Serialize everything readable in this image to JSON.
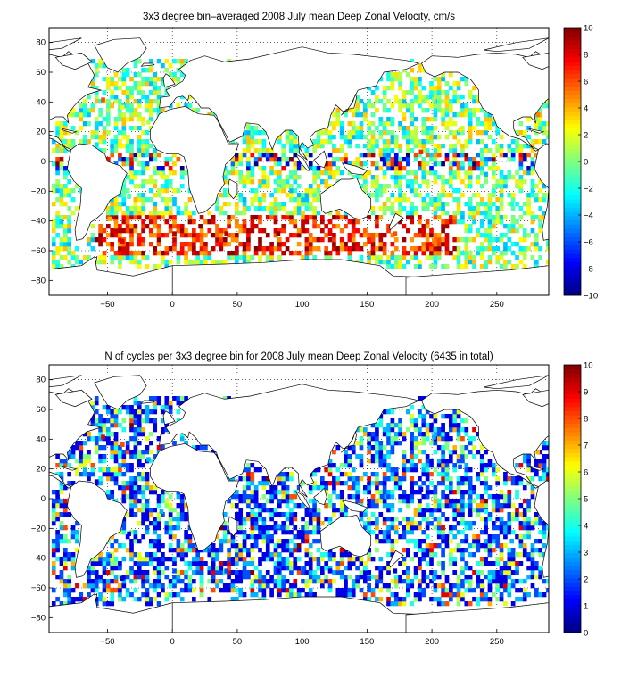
{
  "chart_data": [
    {
      "type": "heatmap",
      "title": "3x3 degree bin–averaged 2008 July mean Deep Zonal Velocity, cm/s",
      "xlabel": "",
      "ylabel": "",
      "xlim": [
        -95,
        290
      ],
      "ylim": [
        -90,
        90
      ],
      "x_ticks": [
        -50,
        0,
        50,
        100,
        150,
        200,
        250
      ],
      "x_tick_labels": [
        "−50",
        "0",
        "50",
        "100",
        "150",
        "200",
        "250"
      ],
      "y_ticks": [
        -80,
        -60,
        -40,
        -20,
        0,
        20,
        40,
        60,
        80
      ],
      "y_tick_labels": [
        "−80",
        "−60",
        "−40",
        "−20",
        "0",
        "20",
        "40",
        "60",
        "80"
      ],
      "grid": "dotted",
      "bin_size_deg": 3,
      "colormap": "jet",
      "color_range": [
        -10,
        10
      ],
      "colorbar_ticks": [
        -10,
        -8,
        -6,
        -4,
        -2,
        0,
        2,
        4,
        6,
        8,
        10
      ],
      "colorbar_tick_labels": [
        "−10",
        "−8",
        "−6",
        "−4",
        "−2",
        "0",
        "2",
        "4",
        "6",
        "8",
        "10"
      ],
      "value_field": "zonal_velocity_cm_s",
      "bins": [
        {
          "lon": -55,
          "lat": 40,
          "value": 6
        },
        {
          "lon": -40,
          "lat": 35,
          "value": 2
        },
        {
          "lon": -30,
          "lat": 50,
          "value": -2
        },
        {
          "lon": -20,
          "lat": 25,
          "value": 1
        },
        {
          "lon": -60,
          "lat": 10,
          "value": -3
        },
        {
          "lon": -30,
          "lat": 0,
          "value": -1
        },
        {
          "lon": -10,
          "lat": -10,
          "value": 2
        },
        {
          "lon": -35,
          "lat": -25,
          "value": -1
        },
        {
          "lon": -50,
          "lat": -40,
          "value": 4
        },
        {
          "lon": -40,
          "lat": -55,
          "value": 8
        },
        {
          "lon": 0,
          "lat": -50,
          "value": 9
        },
        {
          "lon": 20,
          "lat": -45,
          "value": 10
        },
        {
          "lon": 40,
          "lat": -50,
          "value": 9
        },
        {
          "lon": 60,
          "lat": -45,
          "value": 8
        },
        {
          "lon": 80,
          "lat": -50,
          "value": 10
        },
        {
          "lon": 100,
          "lat": -48,
          "value": 9
        },
        {
          "lon": 120,
          "lat": -50,
          "value": 8
        },
        {
          "lon": 150,
          "lat": -55,
          "value": 7
        },
        {
          "lon": 170,
          "lat": -50,
          "value": 6
        },
        {
          "lon": 200,
          "lat": -55,
          "value": 5
        },
        {
          "lon": 60,
          "lat": -10,
          "value": -2
        },
        {
          "lon": 80,
          "lat": -20,
          "value": 1
        },
        {
          "lon": 90,
          "lat": 0,
          "value": 10
        },
        {
          "lon": 160,
          "lat": 0,
          "value": -9
        },
        {
          "lon": 190,
          "lat": 5,
          "value": 7
        },
        {
          "lon": 200,
          "lat": 40,
          "value": 0
        },
        {
          "lon": 220,
          "lat": 20,
          "value": 3
        },
        {
          "lon": 240,
          "lat": -10,
          "value": -4
        },
        {
          "lon": 260,
          "lat": -30,
          "value": -2
        },
        {
          "lon": 280,
          "lat": 30,
          "value": 5
        }
      ],
      "land_mask": "world coastlines; land and unsampled bins white"
    },
    {
      "type": "heatmap",
      "title": "N of cycles per 3x3 degree bin for 2008 July mean Deep Zonal Velocity (6435 in total)",
      "xlabel": "",
      "ylabel": "",
      "xlim": [
        -95,
        290
      ],
      "ylim": [
        -90,
        90
      ],
      "x_ticks": [
        -50,
        0,
        50,
        100,
        150,
        200,
        250
      ],
      "x_tick_labels": [
        "−50",
        "0",
        "50",
        "100",
        "150",
        "200",
        "250"
      ],
      "y_ticks": [
        -80,
        -60,
        -40,
        -20,
        0,
        20,
        40,
        60,
        80
      ],
      "y_tick_labels": [
        "−80",
        "−60",
        "−40",
        "−20",
        "0",
        "20",
        "40",
        "60",
        "80"
      ],
      "grid": "dotted",
      "bin_size_deg": 3,
      "colormap": "jet",
      "color_range": [
        0,
        10
      ],
      "colorbar_ticks": [
        0,
        1,
        2,
        3,
        4,
        5,
        6,
        7,
        8,
        9,
        10
      ],
      "colorbar_tick_labels": [
        "0",
        "1",
        "2",
        "3",
        "4",
        "5",
        "6",
        "7",
        "8",
        "9",
        "10"
      ],
      "value_field": "n_cycles",
      "total_cycles": 6435,
      "bins": [
        {
          "lon": -55,
          "lat": 40,
          "value": 9
        },
        {
          "lon": -40,
          "lat": 35,
          "value": 8
        },
        {
          "lon": -30,
          "lat": 50,
          "value": 2
        },
        {
          "lon": -20,
          "lat": 25,
          "value": 3
        },
        {
          "lon": -60,
          "lat": 10,
          "value": 1
        },
        {
          "lon": -30,
          "lat": 0,
          "value": 2
        },
        {
          "lon": -10,
          "lat": -10,
          "value": 3
        },
        {
          "lon": -35,
          "lat": -25,
          "value": 1
        },
        {
          "lon": -50,
          "lat": -40,
          "value": 2
        },
        {
          "lon": -40,
          "lat": -55,
          "value": 1
        },
        {
          "lon": 0,
          "lat": -50,
          "value": 2
        },
        {
          "lon": 20,
          "lat": -45,
          "value": 1
        },
        {
          "lon": 40,
          "lat": -50,
          "value": 2
        },
        {
          "lon": 60,
          "lat": -45,
          "value": 3
        },
        {
          "lon": 80,
          "lat": -50,
          "value": 1
        },
        {
          "lon": 100,
          "lat": -48,
          "value": 2
        },
        {
          "lon": 120,
          "lat": -50,
          "value": 1
        },
        {
          "lon": 150,
          "lat": -55,
          "value": 2
        },
        {
          "lon": 170,
          "lat": -50,
          "value": 1
        },
        {
          "lon": 200,
          "lat": -55,
          "value": 3
        },
        {
          "lon": 60,
          "lat": -10,
          "value": 4
        },
        {
          "lon": 80,
          "lat": -20,
          "value": 3
        },
        {
          "lon": 90,
          "lat": 0,
          "value": 8
        },
        {
          "lon": 160,
          "lat": 0,
          "value": 2
        },
        {
          "lon": 190,
          "lat": 5,
          "value": 1
        },
        {
          "lon": 200,
          "lat": 40,
          "value": 3
        },
        {
          "lon": 220,
          "lat": 20,
          "value": 2
        },
        {
          "lon": 240,
          "lat": -10,
          "value": 4
        },
        {
          "lon": 260,
          "lat": -30,
          "value": 3
        },
        {
          "lon": 280,
          "lat": 30,
          "value": 7
        }
      ],
      "land_mask": "world coastlines; land and unsampled bins white"
    }
  ]
}
